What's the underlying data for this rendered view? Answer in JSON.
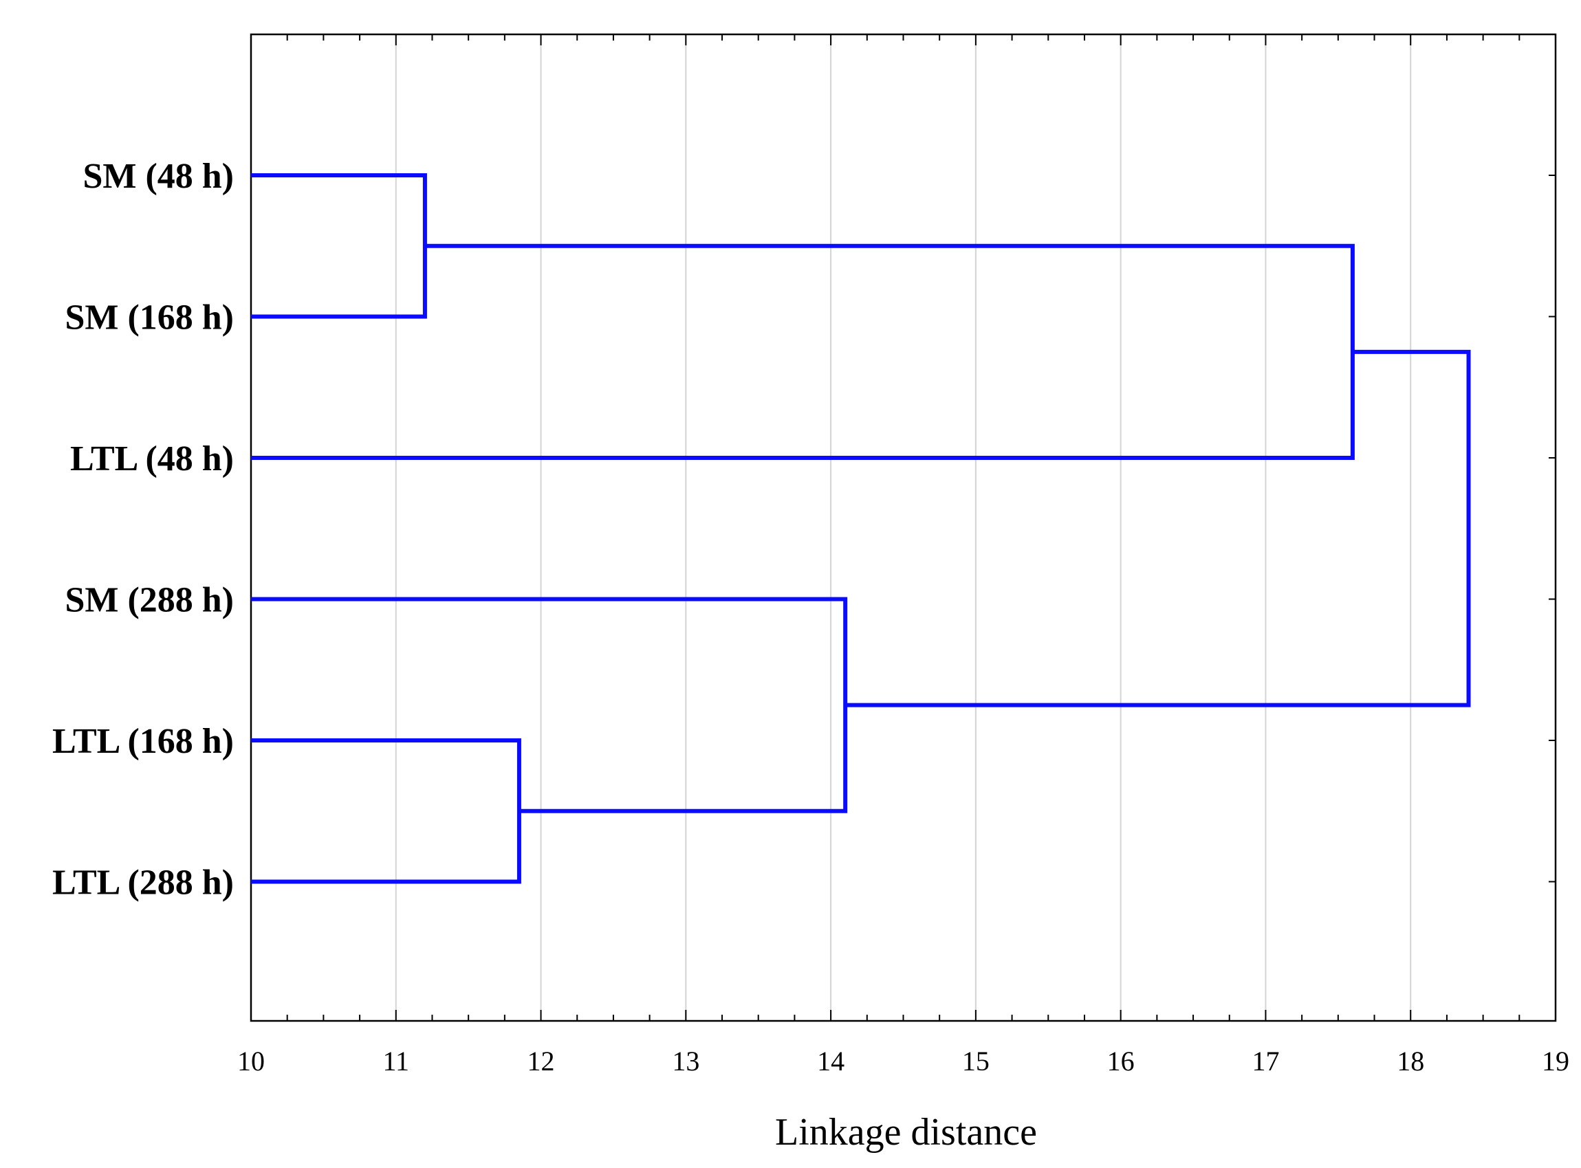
{
  "chart_data": {
    "type": "dendrogram",
    "orientation": "horizontal",
    "leaves": [
      "SM (48 h)",
      "SM (168 h)",
      "LTL (48 h)",
      "SM (288 h)",
      "LTL (168 h)",
      "LTL (288 h)"
    ],
    "merges": [
      {
        "left": "SM (48 h)",
        "right": "SM (168 h)",
        "distance": 11.2
      },
      {
        "left": "LTL (168 h)",
        "right": "LTL (288 h)",
        "distance": 11.85
      },
      {
        "left": "SM (288 h)",
        "right": "merge:LTL (168 h)+LTL (288 h)",
        "distance": 14.1
      },
      {
        "left": "merge:SM (48 h)+SM (168 h)",
        "right": "LTL (48 h)",
        "distance": 17.6
      },
      {
        "left": "merge:SM (48 h)+SM (168 h)+LTL (48 h)",
        "right": "merge:SM (288 h)+LTL (168 h)+LTL (288 h)",
        "distance": 18.4
      }
    ],
    "xlabel": "Linkage distance",
    "ylabel": "",
    "title": "",
    "xlim": [
      10,
      19
    ],
    "xticks": [
      10,
      11,
      12,
      13,
      14,
      15,
      16,
      17,
      18,
      19
    ],
    "xtick_labels": [
      "10",
      "11",
      "12",
      "13",
      "14",
      "15",
      "16",
      "17",
      "18",
      "19"
    ],
    "grid": "vertical",
    "line_color": "#0b0bff",
    "grid_color": "#d4d4d4"
  }
}
